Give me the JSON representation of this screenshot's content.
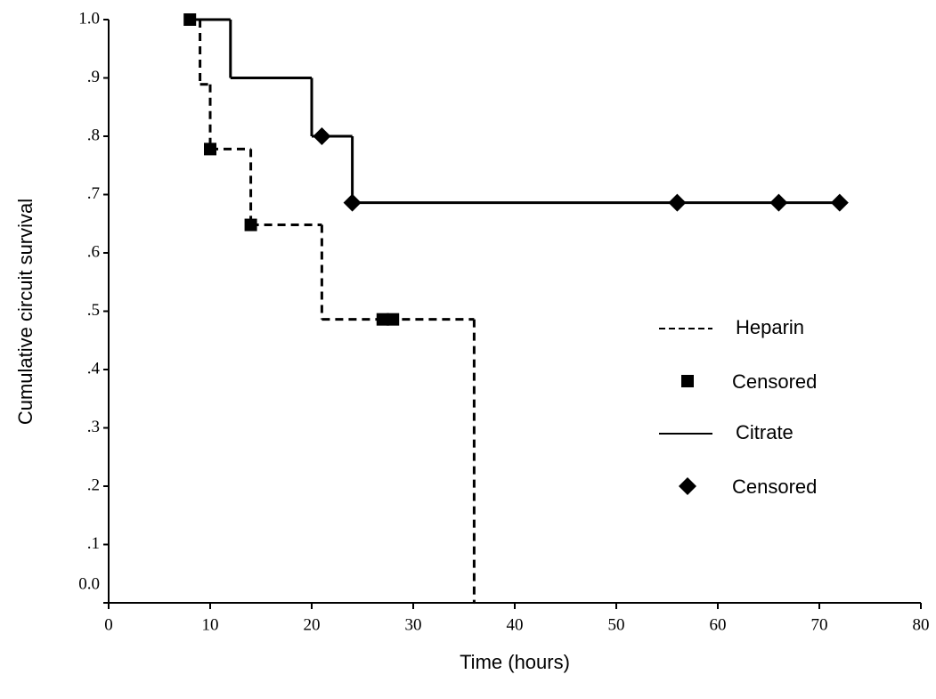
{
  "chart_data": {
    "type": "step",
    "xlabel": "Time  (hours)",
    "ylabel": "Cumulative circuit survival",
    "xlim": [
      0,
      80
    ],
    "xticks": [
      0,
      10,
      20,
      30,
      40,
      50,
      60,
      70,
      80
    ],
    "ylim": [
      0,
      1
    ],
    "yticks": [
      {
        "value": 0,
        "label": "0.0"
      },
      {
        "value": 0.1,
        "label": ".1"
      },
      {
        "value": 0.2,
        "label": ".2"
      },
      {
        "value": 0.3,
        "label": ".3"
      },
      {
        "value": 0.4,
        "label": ".4"
      },
      {
        "value": 0.5,
        "label": ".5"
      },
      {
        "value": 0.6,
        "label": ".6"
      },
      {
        "value": 0.7,
        "label": ".7"
      },
      {
        "value": 0.8,
        "label": ".8"
      },
      {
        "value": 0.9,
        "label": ".9"
      },
      {
        "value": 1,
        "label": "1.0"
      }
    ],
    "legend": "right",
    "series": [
      {
        "name": "Heparin",
        "color": "#000000",
        "style": "dashed",
        "x": [
          8,
          9,
          10,
          14,
          21,
          36
        ],
        "values": [
          1,
          0.889,
          0.778,
          0.648,
          0.486,
          0
        ],
        "censored": {
          "name": "Censored",
          "marker": "square",
          "x": [
            8,
            10,
            14,
            27,
            28
          ],
          "values": [
            1,
            0.778,
            0.648,
            0.486,
            0.486
          ]
        }
      },
      {
        "name": "Citrate",
        "color": "#000000",
        "style": "solid",
        "x": [
          8,
          12,
          20,
          24,
          72
        ],
        "values": [
          1,
          0.9,
          0.8,
          0.686,
          0.686
        ],
        "censored": {
          "name": "Censored",
          "marker": "diamond",
          "x": [
            21,
            24,
            56,
            66,
            72
          ],
          "values": [
            0.8,
            0.686,
            0.686,
            0.686,
            0.686
          ]
        }
      }
    ]
  }
}
